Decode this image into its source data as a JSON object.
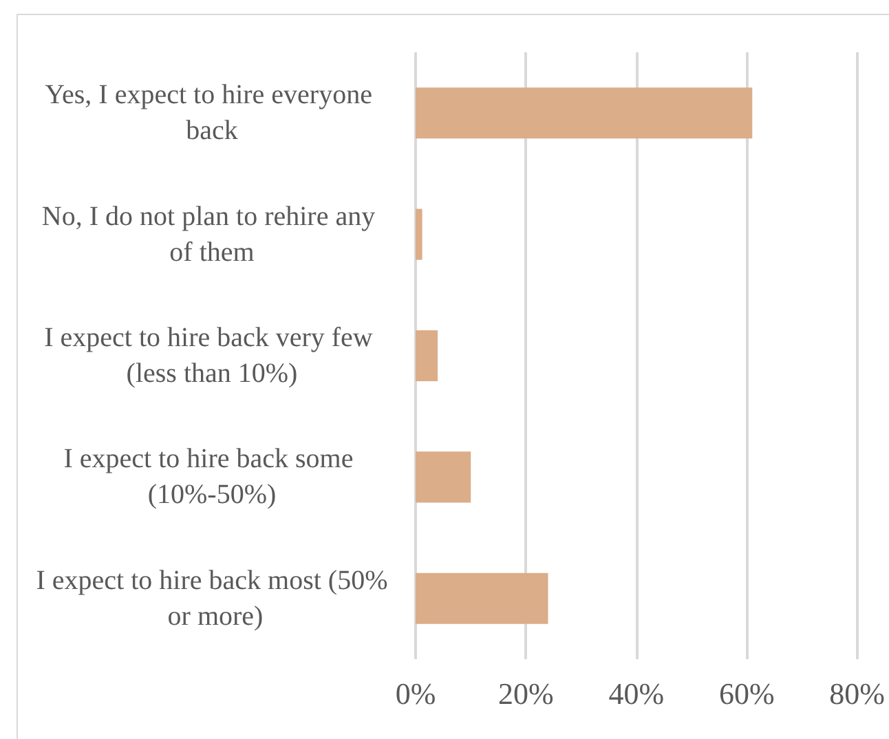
{
  "chart_data": {
    "type": "bar",
    "orientation": "horizontal",
    "categories": [
      "Yes, I expect to hire everyone back",
      "No, I do not plan to rehire any of them",
      "I expect to hire back very few (less than 10%)",
      "I expect to hire back some (10%-50%)",
      "I expect to hire back most (50% or more)"
    ],
    "values": [
      61,
      1.2,
      4,
      10,
      24
    ],
    "color": "#dbad88",
    "xlim": [
      0,
      80
    ],
    "xticks": [
      {
        "value": 0,
        "label": "0%"
      },
      {
        "value": 20,
        "label": "20%"
      },
      {
        "value": 40,
        "label": "40%"
      },
      {
        "value": 60,
        "label": "60%"
      },
      {
        "value": 80,
        "label": "80%"
      }
    ],
    "grid": "x"
  }
}
